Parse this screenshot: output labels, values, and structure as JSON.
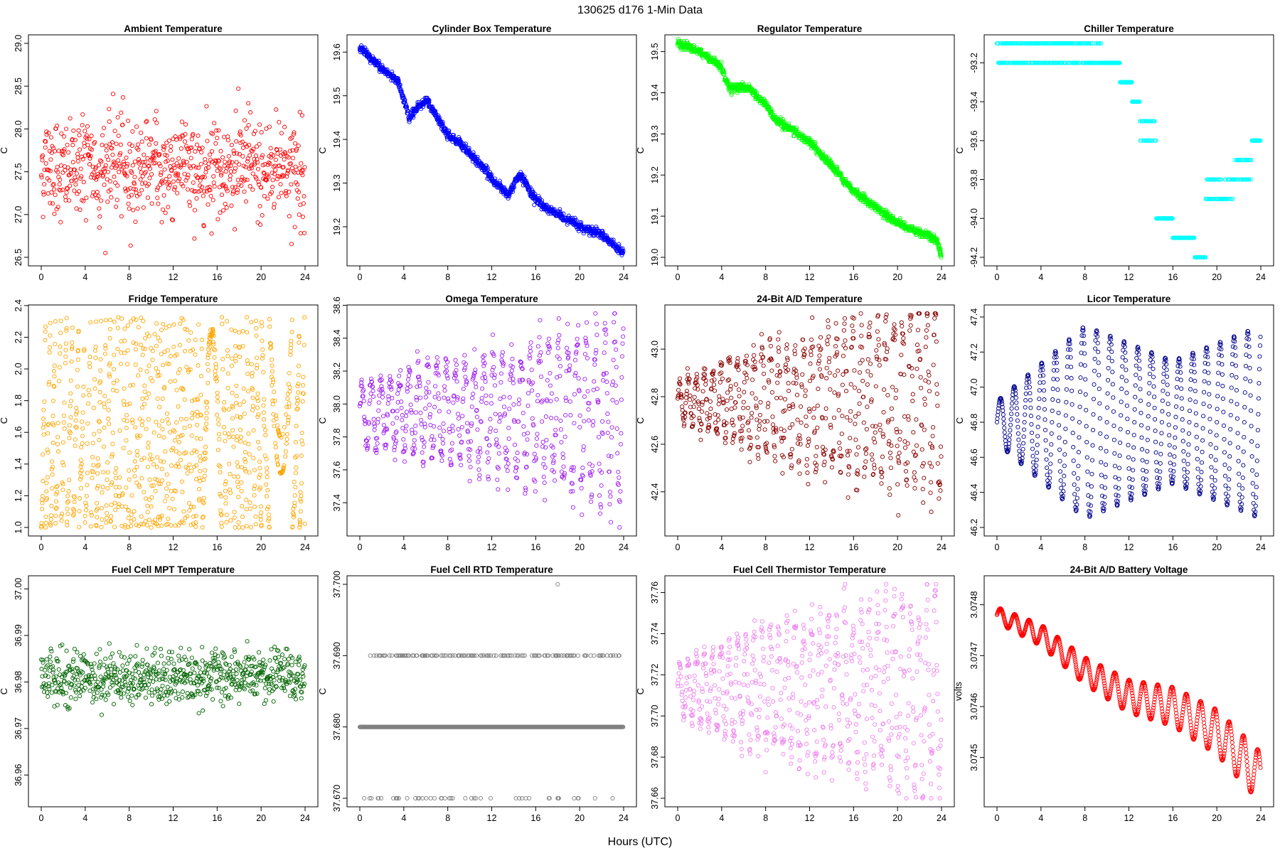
{
  "figure": {
    "suptitle": "130625   d176   1-Min Data",
    "xlabel": "Hours (UTC)"
  },
  "chart_data": [
    {
      "type": "scatter",
      "title": "Ambient Temperature",
      "ylabel": "C",
      "color": "#ff0000",
      "xlim": [
        0,
        24
      ],
      "ylim": [
        26.5,
        29.0
      ],
      "xticks": [
        0,
        4,
        8,
        12,
        16,
        20,
        24
      ],
      "yticks": [
        26.5,
        27.0,
        27.5,
        28.0,
        28.5,
        29.0
      ],
      "ytick_labels": [
        "26.5",
        "27.0",
        "27.5",
        "28.0",
        "28.5",
        "29.0"
      ],
      "pattern": "noise",
      "baseline": 27.55,
      "spread": 0.45,
      "range": [
        26.55,
        29.0
      ]
    },
    {
      "type": "scatter",
      "title": "Cylinder Box Temperature",
      "ylabel": "C",
      "color": "#0000ff",
      "xlim": [
        0,
        24
      ],
      "ylim": [
        19.13,
        19.62
      ],
      "xticks": [
        0,
        4,
        8,
        12,
        16,
        20,
        24
      ],
      "yticks": [
        19.2,
        19.3,
        19.4,
        19.5,
        19.6
      ],
      "ytick_labels": [
        "19.2",
        "19.3",
        "19.4",
        "19.5",
        "19.6"
      ],
      "pattern": "trend",
      "trend": [
        [
          0,
          19.61
        ],
        [
          2,
          19.56
        ],
        [
          3.5,
          19.53
        ],
        [
          4.5,
          19.45
        ],
        [
          6,
          19.49
        ],
        [
          8,
          19.41
        ],
        [
          9.5,
          19.38
        ],
        [
          12,
          19.31
        ],
        [
          13.5,
          19.27
        ],
        [
          14.5,
          19.32
        ],
        [
          16,
          19.26
        ],
        [
          17,
          19.24
        ],
        [
          20,
          19.2
        ],
        [
          22,
          19.18
        ],
        [
          24,
          19.14
        ]
      ]
    },
    {
      "type": "scatter",
      "title": "Regulator Temperature",
      "ylabel": "C",
      "color": "#00ff00",
      "xlim": [
        0,
        24
      ],
      "ylim": [
        19.0,
        19.52
      ],
      "xticks": [
        0,
        4,
        8,
        12,
        16,
        20,
        24
      ],
      "yticks": [
        19.0,
        19.1,
        19.2,
        19.3,
        19.4,
        19.5
      ],
      "ytick_labels": [
        "19.0",
        "19.1",
        "19.2",
        "19.3",
        "19.4",
        "19.5"
      ],
      "pattern": "trend",
      "trend": [
        [
          0,
          19.52
        ],
        [
          2,
          19.5
        ],
        [
          4,
          19.46
        ],
        [
          4.7,
          19.41
        ],
        [
          6.5,
          19.41
        ],
        [
          8,
          19.37
        ],
        [
          9,
          19.33
        ],
        [
          12,
          19.28
        ],
        [
          14,
          19.22
        ],
        [
          16,
          19.16
        ],
        [
          20,
          19.08
        ],
        [
          22,
          19.06
        ],
        [
          23.6,
          19.04
        ],
        [
          24,
          19.0
        ]
      ]
    },
    {
      "type": "scatter",
      "title": "Chiller Temperature",
      "ylabel": "C",
      "color": "#00ffff",
      "xlim": [
        0,
        24
      ],
      "ylim": [
        -94.2,
        -93.1
      ],
      "xticks": [
        0,
        4,
        8,
        12,
        16,
        20,
        24
      ],
      "yticks": [
        -94.2,
        -94.0,
        -93.8,
        -93.6,
        -93.4,
        -93.2
      ],
      "ytick_labels": [
        "-94.2",
        "-94.0",
        "-93.8",
        "-93.6",
        "-93.4",
        "-93.2"
      ],
      "pattern": "steps",
      "levels": [
        [
          0,
          -93.1,
          -93.2
        ],
        [
          9.5,
          -93.2,
          -93.2
        ],
        [
          11.2,
          -93.3,
          -93.3
        ],
        [
          12.3,
          -93.4,
          -93.4
        ],
        [
          13,
          -93.5,
          -93.6
        ],
        [
          14.5,
          -94.0,
          -94.0
        ],
        [
          16,
          -94.1,
          -94.1
        ],
        [
          18,
          -94.2,
          -94.2
        ],
        [
          19,
          -93.9,
          -93.8
        ],
        [
          21.5,
          -93.8,
          -93.7
        ],
        [
          23.2,
          -93.6,
          -93.6
        ]
      ]
    },
    {
      "type": "scatter",
      "title": "Fridge Temperature",
      "ylabel": "C",
      "color": "#ffa500",
      "xlim": [
        0,
        24
      ],
      "ylim": [
        1.0,
        2.35
      ],
      "xticks": [
        0,
        4,
        8,
        12,
        16,
        20,
        24
      ],
      "yticks": [
        1.0,
        1.2,
        1.4,
        1.6,
        1.8,
        2.0,
        2.2,
        2.4
      ],
      "ytick_labels": [
        "1.0",
        "1.2",
        "1.4",
        "1.6",
        "1.8",
        "2.0",
        "2.2",
        "2.4"
      ],
      "pattern": "sawtooth",
      "low": 1.0,
      "high": 2.33
    },
    {
      "type": "scatter",
      "title": "Omega Temperature",
      "ylabel": "C",
      "color": "#a020f0",
      "xlim": [
        0,
        24
      ],
      "ylim": [
        37.25,
        38.55
      ],
      "xticks": [
        0,
        4,
        8,
        12,
        16,
        20,
        24
      ],
      "yticks": [
        37.4,
        37.6,
        37.8,
        38.0,
        38.2,
        38.4,
        38.6
      ],
      "ytick_labels": [
        "37.4",
        "37.6",
        "37.8",
        "38.0",
        "38.2",
        "38.4",
        "38.6"
      ],
      "pattern": "osc",
      "mean": 37.95,
      "amp": [
        0.18,
        0.3,
        0.38,
        0.6
      ],
      "period": 0.85
    },
    {
      "type": "scatter",
      "title": "24-Bit A/D Temperature",
      "ylabel": "C",
      "color": "#8b0000",
      "xlim": [
        0,
        24
      ],
      "ylim": [
        42.25,
        43.15
      ],
      "xticks": [
        0,
        4,
        8,
        12,
        16,
        20,
        24
      ],
      "yticks": [
        42.4,
        42.6,
        42.8,
        43.0
      ],
      "ytick_labels": [
        "42.4",
        "42.6",
        "42.8",
        "43.0"
      ],
      "pattern": "osc",
      "mean": 42.78,
      "amp": [
        0.08,
        0.22,
        0.3,
        0.38
      ],
      "period": 0.75
    },
    {
      "type": "scatter",
      "title": "Licor Temperature",
      "ylabel": "C",
      "color": "#00008b",
      "xlim": [
        0,
        24
      ],
      "ylim": [
        46.2,
        47.42
      ],
      "xticks": [
        0,
        4,
        8,
        12,
        16,
        20,
        24
      ],
      "yticks": [
        46.2,
        46.4,
        46.6,
        46.8,
        47.0,
        47.2,
        47.4
      ],
      "ytick_labels": [
        "46.2",
        "46.4",
        "46.6",
        "46.8",
        "47.0",
        "47.2",
        "47.4"
      ],
      "pattern": "wave",
      "mean": 46.8,
      "amp": [
        0.12,
        0.55,
        0.35,
        0.55
      ],
      "period": 1.25
    },
    {
      "type": "scatter",
      "title": "Fuel Cell MPT Temperature",
      "ylabel": "C",
      "color": "#006400",
      "xlim": [
        0,
        24
      ],
      "ylim": [
        36.955,
        37.001
      ],
      "xticks": [
        0,
        4,
        8,
        12,
        16,
        20,
        24
      ],
      "yticks": [
        36.96,
        36.97,
        36.98,
        36.99,
        37.0
      ],
      "ytick_labels": [
        "36.96",
        "36.97",
        "36.98",
        "36.99",
        "37.00"
      ],
      "pattern": "noise",
      "baseline": 36.981,
      "spread": 0.0045,
      "range": [
        36.955,
        37.001
      ]
    },
    {
      "type": "scatter",
      "title": "Fuel Cell RTD Temperature",
      "ylabel": "C",
      "color": "#808080",
      "xlim": [
        0,
        24
      ],
      "ylim": [
        37.67,
        37.7
      ],
      "xticks": [
        0,
        4,
        8,
        12,
        16,
        20,
        24
      ],
      "yticks": [
        37.67,
        37.68,
        37.69,
        37.7
      ],
      "ytick_labels": [
        "37.670",
        "37.680",
        "37.690",
        "37.700"
      ],
      "pattern": "discrete",
      "levels": [
        37.68,
        37.69,
        37.67
      ],
      "outlier": [
        18,
        37.7
      ]
    },
    {
      "type": "scatter",
      "title": "Fuel Cell Thermistor Temperature",
      "ylabel": "C",
      "color": "#ee82ee",
      "xlim": [
        0,
        24
      ],
      "ylim": [
        37.66,
        37.764
      ],
      "xticks": [
        0,
        4,
        8,
        12,
        16,
        20,
        24
      ],
      "yticks": [
        37.66,
        37.68,
        37.7,
        37.72,
        37.74,
        37.76
      ],
      "ytick_labels": [
        "37.66",
        "37.68",
        "37.70",
        "37.72",
        "37.74",
        "37.76"
      ],
      "pattern": "osc",
      "mean": 37.713,
      "amp": [
        0.012,
        0.03,
        0.035,
        0.05
      ],
      "period": 0.75
    },
    {
      "type": "scatter",
      "title": "24-Bit A/D Battery Voltage",
      "ylabel": "volts",
      "color": "#ff0000",
      "xlim": [
        0,
        24
      ],
      "ylim": [
        3.07442,
        3.07484
      ],
      "xticks": [
        0,
        4,
        8,
        12,
        16,
        20,
        24
      ],
      "yticks": [
        3.0745,
        3.0746,
        3.0747,
        3.0748
      ],
      "ytick_labels": [
        "3.0745",
        "3.0746",
        "3.0747",
        "3.0748"
      ],
      "pattern": "wavetrend",
      "trend": [
        [
          0,
          3.07478
        ],
        [
          4,
          3.07474
        ],
        [
          8,
          3.07467
        ],
        [
          12,
          3.07462
        ],
        [
          16,
          3.0746
        ],
        [
          20,
          3.07455
        ],
        [
          24,
          3.07446
        ]
      ],
      "amp": [
        1.5e-05,
        5e-05
      ],
      "period": 1.3
    }
  ]
}
